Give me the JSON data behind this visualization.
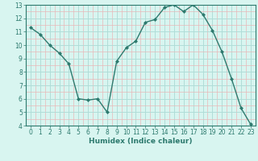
{
  "x": [
    0,
    1,
    2,
    3,
    4,
    5,
    6,
    7,
    8,
    9,
    10,
    11,
    12,
    13,
    14,
    15,
    16,
    17,
    18,
    19,
    20,
    21,
    22,
    23
  ],
  "y": [
    11.3,
    10.8,
    10.0,
    9.4,
    8.6,
    6.0,
    5.9,
    6.0,
    5.0,
    8.8,
    9.8,
    10.3,
    11.7,
    11.9,
    12.8,
    13.0,
    12.5,
    13.0,
    12.3,
    11.1,
    9.5,
    7.5,
    5.3,
    4.1
  ],
  "line_color": "#2d7a6e",
  "bg_color": "#d8f5f0",
  "grid_major_color": "#b0ddd8",
  "grid_minor_color": "#e8b8b8",
  "xlabel": "Humidex (Indice chaleur)",
  "xlim": [
    -0.5,
    23.5
  ],
  "ylim": [
    4,
    13
  ],
  "xticks": [
    0,
    1,
    2,
    3,
    4,
    5,
    6,
    7,
    8,
    9,
    10,
    11,
    12,
    13,
    14,
    15,
    16,
    17,
    18,
    19,
    20,
    21,
    22,
    23
  ],
  "yticks": [
    4,
    5,
    6,
    7,
    8,
    9,
    10,
    11,
    12,
    13
  ],
  "tick_fontsize": 5.5,
  "xlabel_fontsize": 6.5
}
